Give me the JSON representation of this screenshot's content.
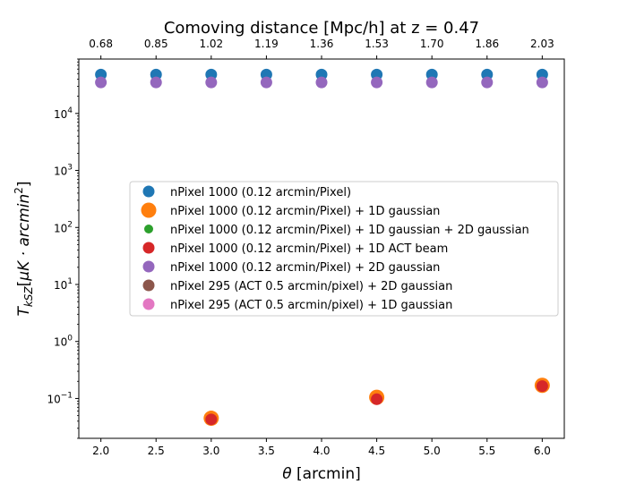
{
  "chart_data": {
    "type": "scatter",
    "title": "Comoving distance [Mpc/h] at z = 0.47",
    "xlabel": "θ [arcmin]",
    "ylabel": "T_{kSZ} [μK·arcmin²]",
    "xlim": [
      1.8,
      6.2
    ],
    "ylim": [
      0.02,
      90000
    ],
    "yscale": "log",
    "x_ticks": [
      2.0,
      2.5,
      3.0,
      3.5,
      4.0,
      4.5,
      5.0,
      5.5,
      6.0
    ],
    "x_tick_labels": [
      "2.0",
      "2.5",
      "3.0",
      "3.5",
      "4.0",
      "4.5",
      "5.0",
      "5.5",
      "6.0"
    ],
    "top_tick_labels": [
      "0.68",
      "0.85",
      "1.02",
      "1.19",
      "1.36",
      "1.53",
      "1.70",
      "1.86",
      "2.03"
    ],
    "y_ticks": [
      {
        "value": 0.1,
        "base": "10",
        "exp": "−1"
      },
      {
        "value": 1,
        "base": "10",
        "exp": "0"
      },
      {
        "value": 10,
        "base": "10",
        "exp": "1"
      },
      {
        "value": 100,
        "base": "10",
        "exp": "2"
      },
      {
        "value": 1000,
        "base": "10",
        "exp": "3"
      },
      {
        "value": 10000,
        "base": "10",
        "exp": "4"
      }
    ],
    "legend_position": "center-right",
    "grid": false,
    "series": [
      {
        "name": "nPixel 1000 (0.12 arcmin/Pixel)",
        "color": "#1f77b4",
        "size": "normal",
        "x": [
          2.0,
          2.5,
          3.0,
          3.5,
          4.0,
          4.5,
          5.0,
          5.5,
          6.0
        ],
        "y": [
          48000,
          48000,
          48000,
          48000,
          48000,
          48000,
          48000,
          48000,
          48000
        ]
      },
      {
        "name": "nPixel 1000 (0.12 arcmin/Pixel) + 1D gaussian",
        "color": "#ff7f0e",
        "size": "large",
        "x": [
          3.0,
          4.5,
          6.0
        ],
        "y": [
          0.045,
          0.105,
          0.17
        ]
      },
      {
        "name": "nPixel 1000 (0.12 arcmin/Pixel) + 1D gaussian + 2D gaussian",
        "color": "#2ca02c",
        "size": "small",
        "x": [],
        "y": []
      },
      {
        "name": "nPixel 1000 (0.12 arcmin/Pixel) + 1D ACT beam",
        "color": "#d62728",
        "size": "normal",
        "x": [
          3.0,
          4.5,
          6.0
        ],
        "y": [
          0.043,
          0.097,
          0.165
        ]
      },
      {
        "name": "nPixel 1000 (0.12 arcmin/Pixel) + 2D gaussian",
        "color": "#9467bd",
        "size": "normal",
        "x": [
          2.0,
          2.5,
          3.0,
          3.5,
          4.0,
          4.5,
          5.0,
          5.5,
          6.0
        ],
        "y": [
          35000,
          35000,
          35000,
          35000,
          35000,
          35000,
          35000,
          35000,
          35000
        ]
      },
      {
        "name": "nPixel 295 (ACT 0.5 arcmin/pixel) + 2D gaussian",
        "color": "#8c564b",
        "size": "normal",
        "x": [],
        "y": []
      },
      {
        "name": "nPixel 295 (ACT 0.5 arcmin/pixel) + 1D gaussian",
        "color": "#e377c2",
        "size": "normal",
        "x": [],
        "y": []
      }
    ]
  }
}
